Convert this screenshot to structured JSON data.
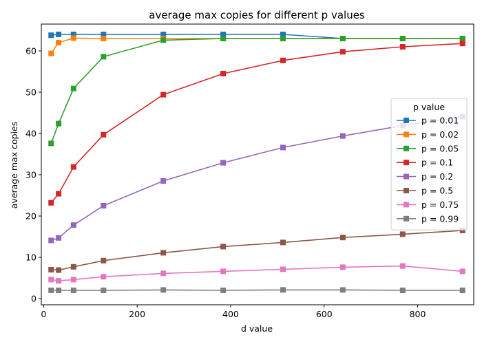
{
  "chart_data": {
    "type": "line",
    "title": "average max copies for different p values",
    "xlabel": "d value",
    "ylabel": "average max copies",
    "xlim": [
      -5,
      920
    ],
    "ylim": [
      -1.5,
      66.5
    ],
    "xticks": [
      0,
      200,
      400,
      600,
      800
    ],
    "yticks": [
      0,
      10,
      20,
      30,
      40,
      50,
      60
    ],
    "grid": false,
    "legend": {
      "title": "p value",
      "placement": "center-right"
    },
    "x": [
      16,
      32,
      64,
      128,
      256,
      384,
      512,
      640,
      768,
      896
    ],
    "series": [
      {
        "name": "p = 0.01",
        "color": "#1f77b4",
        "values": [
          63.8,
          64.0,
          64.0,
          64.0,
          64.0,
          64.0,
          64.0,
          63.0,
          63.0,
          63.0
        ]
      },
      {
        "name": "p = 0.02",
        "color": "#ff7f0e",
        "values": [
          59.4,
          62.0,
          63.1,
          63.0,
          63.0,
          63.0,
          63.0,
          63.0,
          63.0,
          63.0
        ]
      },
      {
        "name": "p = 0.05",
        "color": "#2ca02c",
        "values": [
          37.6,
          42.4,
          50.9,
          58.6,
          62.6,
          63.0,
          63.0,
          63.0,
          63.0,
          63.0
        ]
      },
      {
        "name": "p = 0.1",
        "color": "#d62728",
        "values": [
          23.2,
          25.4,
          31.9,
          39.7,
          49.4,
          54.5,
          57.7,
          59.8,
          61.0,
          61.8
        ]
      },
      {
        "name": "p = 0.2",
        "color": "#9467bd",
        "values": [
          14.1,
          14.7,
          17.8,
          22.5,
          28.5,
          32.9,
          36.6,
          39.4,
          41.9,
          44.1
        ]
      },
      {
        "name": "p = 0.5",
        "color": "#8c564b",
        "values": [
          7.0,
          6.9,
          7.7,
          9.2,
          11.1,
          12.6,
          13.6,
          14.8,
          15.6,
          16.5
        ]
      },
      {
        "name": "p = 0.75",
        "color": "#e377c2",
        "values": [
          4.6,
          4.3,
          4.6,
          5.3,
          6.1,
          6.6,
          7.1,
          7.6,
          7.9,
          6.6
        ]
      },
      {
        "name": "p = 0.99",
        "color": "#7f7f7f",
        "values": [
          2.0,
          2.0,
          2.0,
          2.0,
          2.1,
          2.0,
          2.1,
          2.1,
          2.0,
          2.0
        ]
      }
    ]
  }
}
